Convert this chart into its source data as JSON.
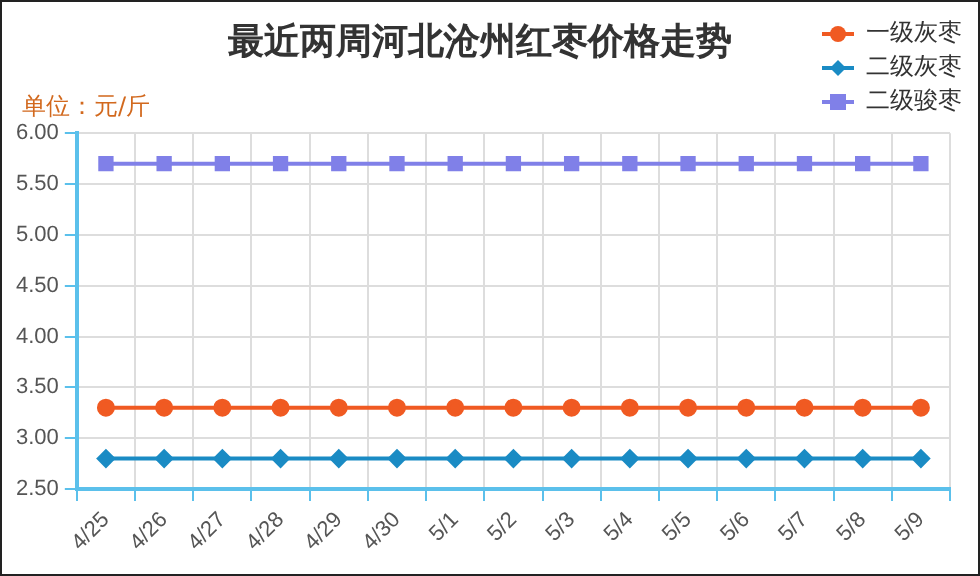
{
  "chart_data": {
    "type": "line",
    "title": "最近两周河北沧州红枣价格走势",
    "ylabel": "单位：元/斤",
    "categories": [
      "4/25",
      "4/26",
      "4/27",
      "4/28",
      "4/29",
      "4/30",
      "5/1",
      "5/2",
      "5/3",
      "5/4",
      "5/5",
      "5/6",
      "5/7",
      "5/8",
      "5/9"
    ],
    "series": [
      {
        "name": "一级灰枣",
        "color": "#f05a22",
        "marker": "circle",
        "values": [
          3.3,
          3.3,
          3.3,
          3.3,
          3.3,
          3.3,
          3.3,
          3.3,
          3.3,
          3.3,
          3.3,
          3.3,
          3.3,
          3.3,
          3.3
        ]
      },
      {
        "name": "二级灰枣",
        "color": "#1a8bc4",
        "marker": "diamond",
        "values": [
          2.8,
          2.8,
          2.8,
          2.8,
          2.8,
          2.8,
          2.8,
          2.8,
          2.8,
          2.8,
          2.8,
          2.8,
          2.8,
          2.8,
          2.8
        ]
      },
      {
        "name": "二级骏枣",
        "color": "#8080e8",
        "marker": "square",
        "values": [
          5.7,
          5.7,
          5.7,
          5.7,
          5.7,
          5.7,
          5.7,
          5.7,
          5.7,
          5.7,
          5.7,
          5.7,
          5.7,
          5.7,
          5.7
        ]
      }
    ],
    "ylim": [
      2.5,
      6.0
    ],
    "yticks": [
      {
        "value": 2.5,
        "label": "2.50"
      },
      {
        "value": 3,
        "label": "3.00"
      },
      {
        "value": 3.5,
        "label": "3.50"
      },
      {
        "value": 4,
        "label": "4.00"
      },
      {
        "value": 4.5,
        "label": "4.50"
      },
      {
        "value": 5,
        "label": "5.00"
      },
      {
        "value": 5.5,
        "label": "5.50"
      },
      {
        "value": 6,
        "label": "6.00"
      }
    ],
    "grid": true,
    "legend": "top right",
    "line_style": "solid"
  }
}
